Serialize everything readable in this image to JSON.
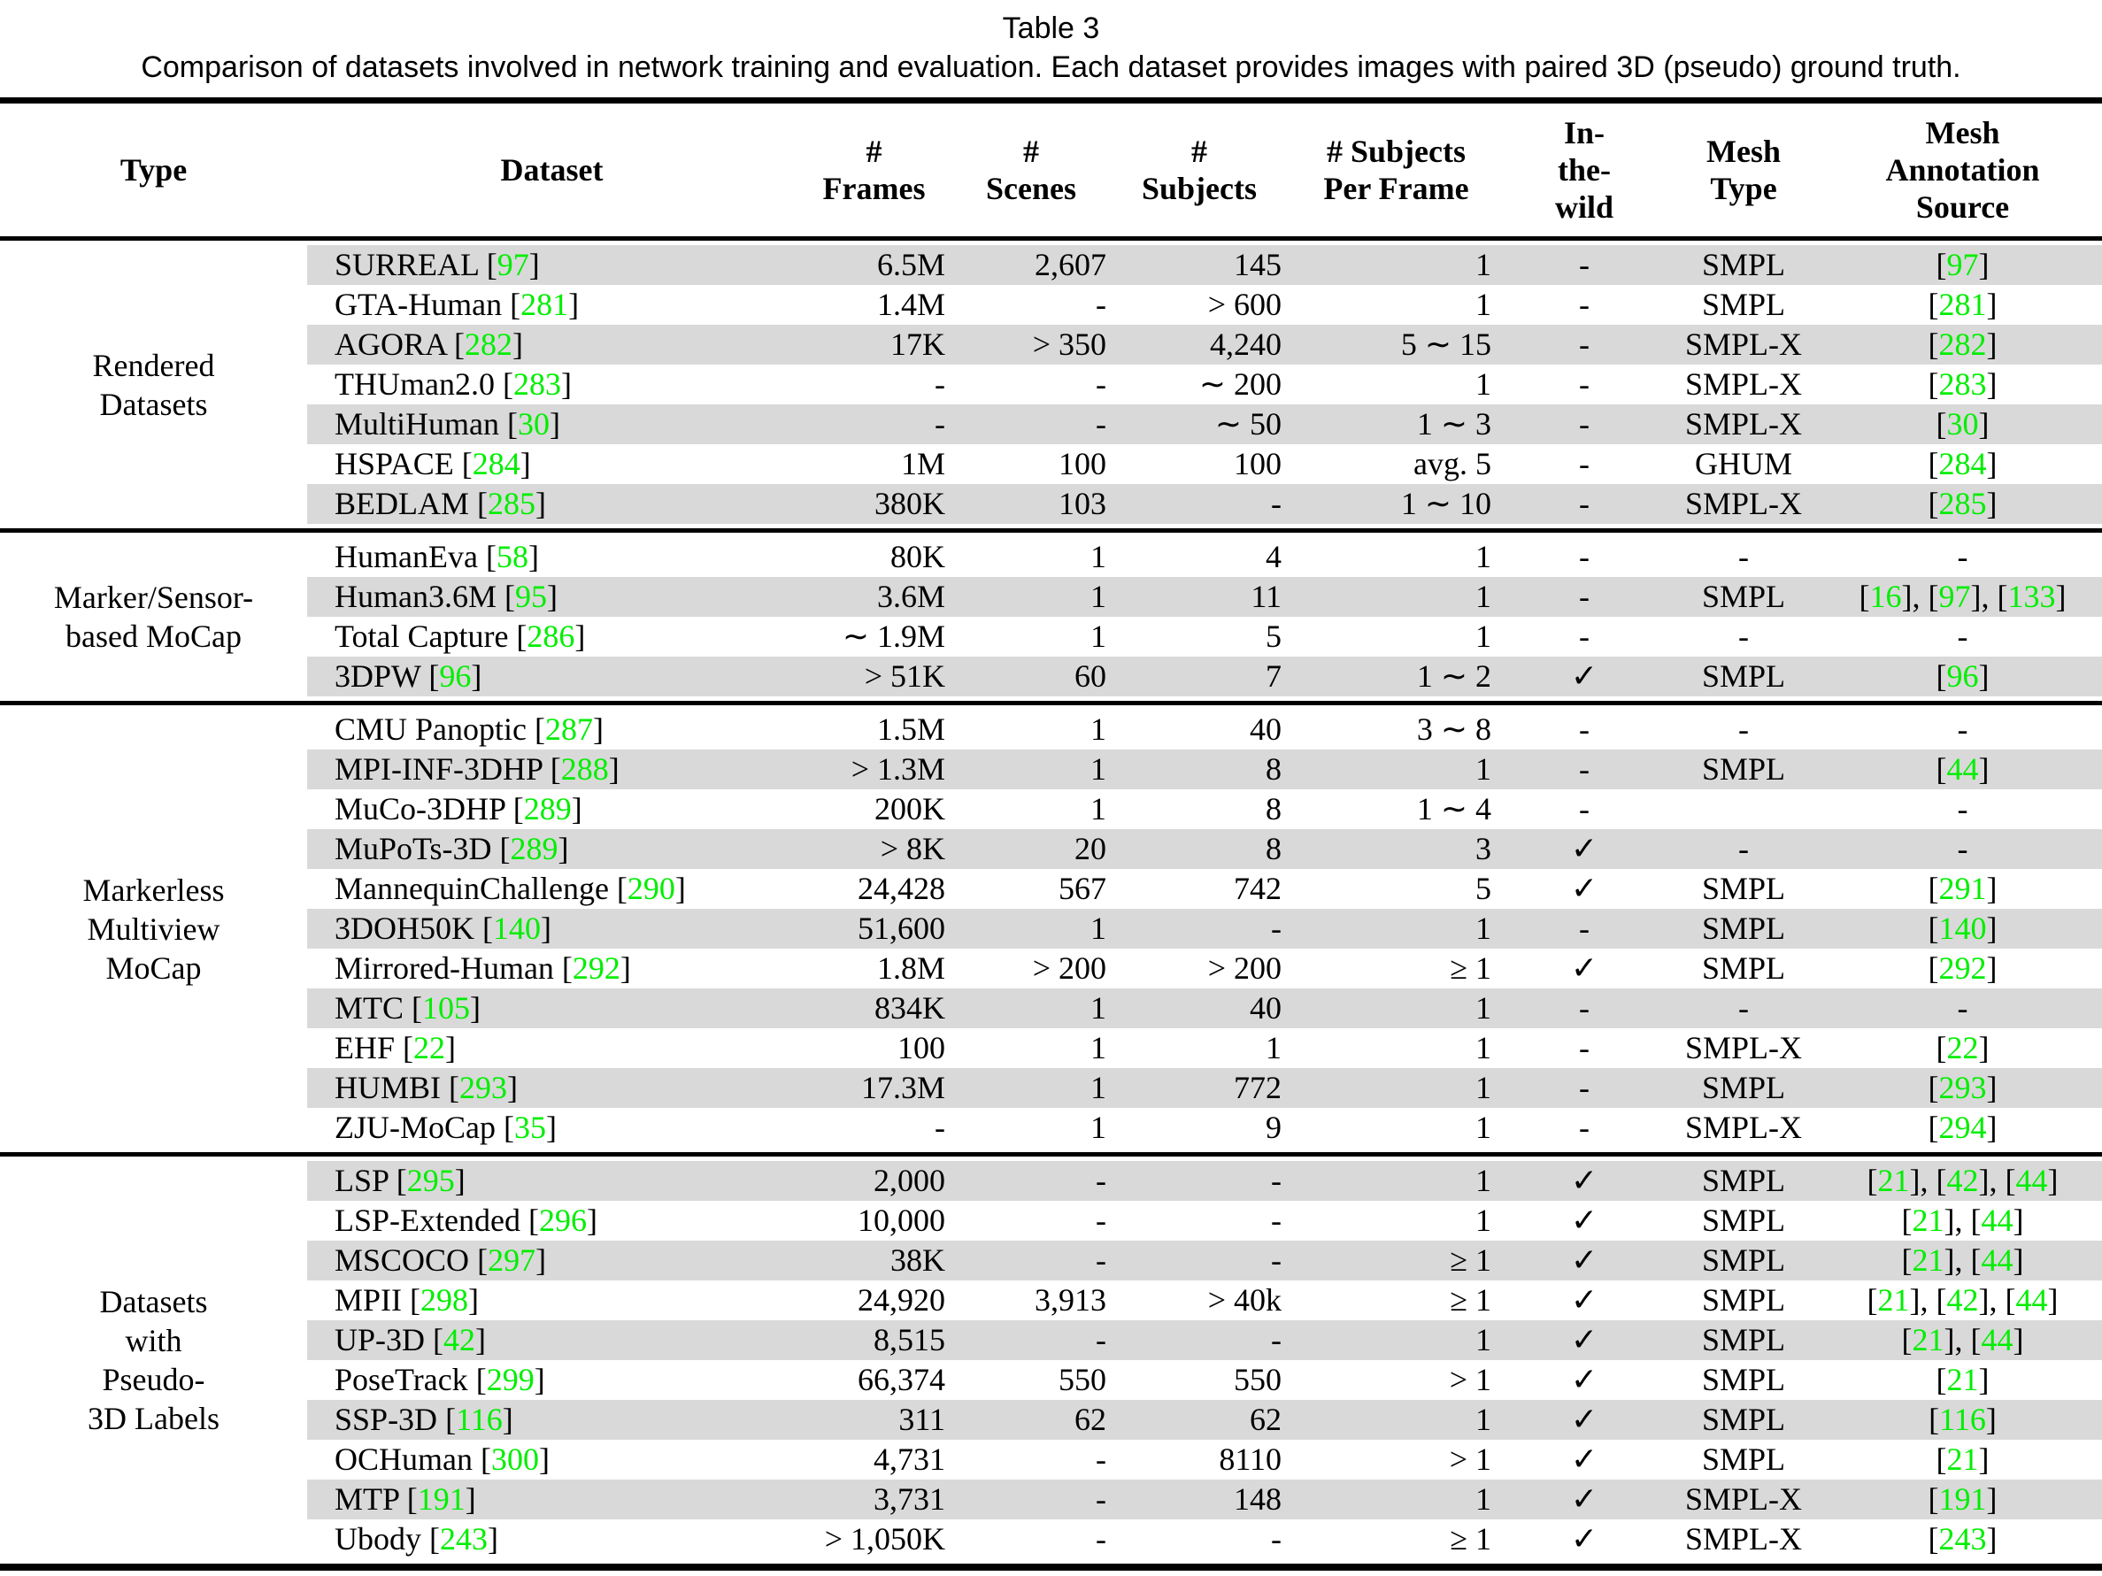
{
  "page": {
    "title": "Table 3",
    "caption": "Comparison of datasets involved in network training and evaluation. Each dataset provides images with paired 3D (pseudo) ground truth."
  },
  "colors": {
    "citation_green": "#00ee00",
    "row_shade": "#d9d9d9",
    "rule_black": "#000000"
  },
  "symbols": {
    "checkmark": "✓",
    "dash": "-"
  },
  "table": {
    "columns": [
      {
        "id": "type",
        "lines": [
          "Type"
        ]
      },
      {
        "id": "dataset",
        "lines": [
          "Dataset"
        ]
      },
      {
        "id": "frames",
        "lines": [
          "#",
          "Frames"
        ]
      },
      {
        "id": "scenes",
        "lines": [
          "#",
          "Scenes"
        ]
      },
      {
        "id": "subjects",
        "lines": [
          "#",
          "Subjects"
        ]
      },
      {
        "id": "per-frame",
        "lines": [
          "# Subjects",
          "Per Frame"
        ]
      },
      {
        "id": "in-the-wild",
        "lines": [
          "In-",
          "the-",
          "wild"
        ]
      },
      {
        "id": "mesh-type",
        "lines": [
          "Mesh",
          "Type"
        ]
      },
      {
        "id": "mesh-annotation-source",
        "lines": [
          "Mesh",
          "Annotation",
          "Source"
        ]
      }
    ],
    "groups": [
      {
        "type_lines": [
          "Rendered",
          "Datasets"
        ],
        "first_shaded": true,
        "rows": [
          {
            "name": "SURREAL",
            "cite": "97",
            "frames": "6.5M",
            "scenes": "2,607",
            "subjects": "145",
            "per_frame": "1",
            "in_the_wild": "-",
            "mesh_type": "SMPL",
            "source": [
              "97"
            ]
          },
          {
            "name": "GTA-Human",
            "cite": "281",
            "frames": "1.4M",
            "scenes": "-",
            "subjects": "> 600",
            "per_frame": "1",
            "in_the_wild": "-",
            "mesh_type": "SMPL",
            "source": [
              "281"
            ]
          },
          {
            "name": "AGORA",
            "cite": "282",
            "frames": "17K",
            "scenes": "> 350",
            "subjects": "4,240",
            "per_frame": "5 ∼ 15",
            "in_the_wild": "-",
            "mesh_type": "SMPL-X",
            "source": [
              "282"
            ]
          },
          {
            "name": "THUman2.0",
            "cite": "283",
            "frames": "-",
            "scenes": "-",
            "subjects": "∼ 200",
            "per_frame": "1",
            "in_the_wild": "-",
            "mesh_type": "SMPL-X",
            "source": [
              "283"
            ]
          },
          {
            "name": "MultiHuman",
            "cite": "30",
            "frames": "-",
            "scenes": "-",
            "subjects": "∼ 50",
            "per_frame": "1 ∼ 3",
            "in_the_wild": "-",
            "mesh_type": "SMPL-X",
            "source": [
              "30"
            ]
          },
          {
            "name": "HSPACE",
            "cite": "284",
            "frames": "1M",
            "scenes": "100",
            "subjects": "100",
            "per_frame": "avg. 5",
            "in_the_wild": "-",
            "mesh_type": "GHUM",
            "source": [
              "284"
            ]
          },
          {
            "name": "BEDLAM",
            "cite": "285",
            "frames": "380K",
            "scenes": "103",
            "subjects": "-",
            "per_frame": "1 ∼ 10",
            "in_the_wild": "-",
            "mesh_type": "SMPL-X",
            "source": [
              "285"
            ]
          }
        ]
      },
      {
        "type_lines": [
          "Marker/Sensor-",
          "based MoCap"
        ],
        "first_shaded": false,
        "rows": [
          {
            "name": "HumanEva",
            "cite": "58",
            "frames": "80K",
            "scenes": "1",
            "subjects": "4",
            "per_frame": "1",
            "in_the_wild": "-",
            "mesh_type": "-",
            "source": "-"
          },
          {
            "name": "Human3.6M",
            "cite": "95",
            "frames": "3.6M",
            "scenes": "1",
            "subjects": "11",
            "per_frame": "1",
            "in_the_wild": "-",
            "mesh_type": "SMPL",
            "source": [
              "16",
              "97",
              "133"
            ]
          },
          {
            "name": "Total Capture",
            "cite": "286",
            "frames": "∼ 1.9M",
            "scenes": "1",
            "subjects": "5",
            "per_frame": "1",
            "in_the_wild": "-",
            "mesh_type": "-",
            "source": "-"
          },
          {
            "name": "3DPW",
            "cite": "96",
            "frames": "> 51K",
            "scenes": "60",
            "subjects": "7",
            "per_frame": "1 ∼ 2",
            "in_the_wild": "✓",
            "mesh_type": "SMPL",
            "source": [
              "96"
            ]
          }
        ]
      },
      {
        "type_lines": [
          "Markerless",
          "Multiview",
          "MoCap"
        ],
        "first_shaded": false,
        "rows": [
          {
            "name": "CMU Panoptic",
            "cite": "287",
            "frames": "1.5M",
            "scenes": "1",
            "subjects": "40",
            "per_frame": "3 ∼ 8",
            "in_the_wild": "-",
            "mesh_type": "-",
            "source": "-"
          },
          {
            "name": "MPI-INF-3DHP",
            "cite": "288",
            "frames": "> 1.3M",
            "scenes": "1",
            "subjects": "8",
            "per_frame": "1",
            "in_the_wild": "-",
            "mesh_type": "SMPL",
            "source": [
              "44"
            ]
          },
          {
            "name": "MuCo-3DHP",
            "cite": "289",
            "frames": "200K",
            "scenes": "1",
            "subjects": "8",
            "per_frame": "1 ∼ 4",
            "in_the_wild": "-",
            "mesh_type": "",
            "source": "-"
          },
          {
            "name": "MuPoTs-3D",
            "cite": "289",
            "frames": "> 8K",
            "scenes": "20",
            "subjects": "8",
            "per_frame": "3",
            "in_the_wild": "✓",
            "mesh_type": "-",
            "source": "-"
          },
          {
            "name": "MannequinChallenge",
            "cite": "290",
            "frames": "24,428",
            "scenes": "567",
            "subjects": "742",
            "per_frame": "5",
            "in_the_wild": "✓",
            "mesh_type": "SMPL",
            "source": [
              "291"
            ]
          },
          {
            "name": "3DOH50K",
            "cite": "140",
            "frames": "51,600",
            "scenes": "1",
            "subjects": "-",
            "per_frame": "1",
            "in_the_wild": "-",
            "mesh_type": "SMPL",
            "source": [
              "140"
            ]
          },
          {
            "name": "Mirrored-Human",
            "cite": "292",
            "frames": "1.8M",
            "scenes": "> 200",
            "subjects": "> 200",
            "per_frame": "≥ 1",
            "in_the_wild": "✓",
            "mesh_type": "SMPL",
            "source": [
              "292"
            ]
          },
          {
            "name": "MTC",
            "cite": "105",
            "frames": "834K",
            "scenes": "1",
            "subjects": "40",
            "per_frame": "1",
            "in_the_wild": "-",
            "mesh_type": "-",
            "source": "-"
          },
          {
            "name": "EHF",
            "cite": "22",
            "frames": "100",
            "scenes": "1",
            "subjects": "1",
            "per_frame": "1",
            "in_the_wild": "-",
            "mesh_type": "SMPL-X",
            "source": [
              "22"
            ]
          },
          {
            "name": "HUMBI",
            "cite": "293",
            "frames": "17.3M",
            "scenes": "1",
            "subjects": "772",
            "per_frame": "1",
            "in_the_wild": "-",
            "mesh_type": "SMPL",
            "source": [
              "293"
            ]
          },
          {
            "name": "ZJU-MoCap",
            "cite": "35",
            "frames": "-",
            "scenes": "1",
            "subjects": "9",
            "per_frame": "1",
            "in_the_wild": "-",
            "mesh_type": "SMPL-X",
            "source": [
              "294"
            ]
          }
        ]
      },
      {
        "type_lines": [
          "Datasets",
          "with",
          "Pseudo-",
          "3D Labels"
        ],
        "first_shaded": true,
        "rows": [
          {
            "name": "LSP",
            "cite": "295",
            "frames": "2,000",
            "scenes": "-",
            "subjects": "-",
            "per_frame": "1",
            "in_the_wild": "✓",
            "mesh_type": "SMPL",
            "source": [
              "21",
              "42",
              "44"
            ]
          },
          {
            "name": "LSP-Extended",
            "cite": "296",
            "frames": "10,000",
            "scenes": "-",
            "subjects": "-",
            "per_frame": "1",
            "in_the_wild": "✓",
            "mesh_type": "SMPL",
            "source": [
              "21",
              "44"
            ]
          },
          {
            "name": "MSCOCO",
            "cite": "297",
            "frames": "38K",
            "scenes": "-",
            "subjects": "-",
            "per_frame": "≥ 1",
            "in_the_wild": "✓",
            "mesh_type": "SMPL",
            "source": [
              "21",
              "44"
            ]
          },
          {
            "name": "MPII",
            "cite": "298",
            "frames": "24,920",
            "scenes": "3,913",
            "subjects": "> 40k",
            "per_frame": "≥ 1",
            "in_the_wild": "✓",
            "mesh_type": "SMPL",
            "source": [
              "21",
              "42",
              "44"
            ]
          },
          {
            "name": "UP-3D",
            "cite": "42",
            "frames": "8,515",
            "scenes": "-",
            "subjects": "-",
            "per_frame": "1",
            "in_the_wild": "✓",
            "mesh_type": "SMPL",
            "source": [
              "21",
              "44"
            ]
          },
          {
            "name": "PoseTrack",
            "cite": "299",
            "frames": "66,374",
            "scenes": "550",
            "subjects": "550",
            "per_frame": "> 1",
            "in_the_wild": "✓",
            "mesh_type": "SMPL",
            "source": [
              "21"
            ]
          },
          {
            "name": "SSP-3D",
            "cite": "116",
            "frames": "311",
            "scenes": "62",
            "subjects": "62",
            "per_frame": "1",
            "in_the_wild": "✓",
            "mesh_type": "SMPL",
            "source": [
              "116"
            ]
          },
          {
            "name": "OCHuman",
            "cite": "300",
            "frames": "4,731",
            "scenes": "-",
            "subjects": "8110",
            "per_frame": "> 1",
            "in_the_wild": "✓",
            "mesh_type": "SMPL",
            "source": [
              "21"
            ]
          },
          {
            "name": "MTP",
            "cite": "191",
            "frames": "3,731",
            "scenes": "-",
            "subjects": "148",
            "per_frame": "1",
            "in_the_wild": "✓",
            "mesh_type": "SMPL-X",
            "source": [
              "191"
            ]
          },
          {
            "name": "Ubody",
            "cite": "243",
            "frames": "> 1,050K",
            "scenes": "-",
            "subjects": "-",
            "per_frame": "≥ 1",
            "in_the_wild": "✓",
            "mesh_type": "SMPL-X",
            "source": [
              "243"
            ]
          }
        ]
      }
    ]
  }
}
